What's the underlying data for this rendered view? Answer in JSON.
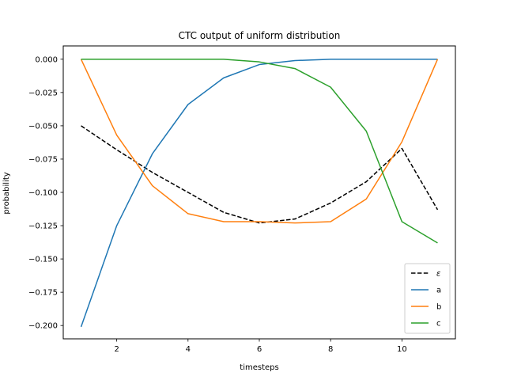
{
  "chart_data": {
    "type": "line",
    "title": "CTC output of uniform distribution",
    "xlabel": "timesteps",
    "ylabel": "probability",
    "xlim": [
      0.5,
      11.5
    ],
    "ylim": [
      -0.21,
      0.01
    ],
    "xticks": [
      2,
      4,
      6,
      8,
      10
    ],
    "yticks": [
      0.0,
      -0.025,
      -0.05,
      -0.075,
      -0.1,
      -0.125,
      -0.15,
      -0.175,
      -0.2
    ],
    "ytick_labels": [
      "0.000",
      "−0.025",
      "−0.050",
      "−0.075",
      "−0.100",
      "−0.125",
      "−0.150",
      "−0.175",
      "−0.200"
    ],
    "xtick_labels": [
      "2",
      "4",
      "6",
      "8",
      "10"
    ],
    "grid": false,
    "legend_position": "bottom-right",
    "x": [
      1,
      2,
      3,
      4,
      5,
      6,
      7,
      8,
      9,
      10,
      11
    ],
    "series": [
      {
        "name": "ε",
        "color": "#000000",
        "dash": true,
        "values": [
          -0.05,
          -0.068,
          -0.085,
          -0.1,
          -0.115,
          -0.123,
          -0.12,
          -0.108,
          -0.092,
          -0.067,
          -0.113
        ]
      },
      {
        "name": "a",
        "color": "#1f77b4",
        "dash": false,
        "values": [
          -0.201,
          -0.125,
          -0.071,
          -0.034,
          -0.014,
          -0.004,
          -0.001,
          0.0,
          0.0,
          0.0,
          0.0
        ]
      },
      {
        "name": "b",
        "color": "#ff7f0e",
        "dash": false,
        "values": [
          0.0,
          -0.057,
          -0.095,
          -0.116,
          -0.122,
          -0.122,
          -0.123,
          -0.122,
          -0.105,
          -0.062,
          0.0
        ]
      },
      {
        "name": "c",
        "color": "#2ca02c",
        "dash": false,
        "values": [
          0.0,
          0.0,
          0.0,
          0.0,
          0.0,
          -0.002,
          -0.007,
          -0.021,
          -0.054,
          -0.122,
          -0.138
        ]
      }
    ]
  }
}
